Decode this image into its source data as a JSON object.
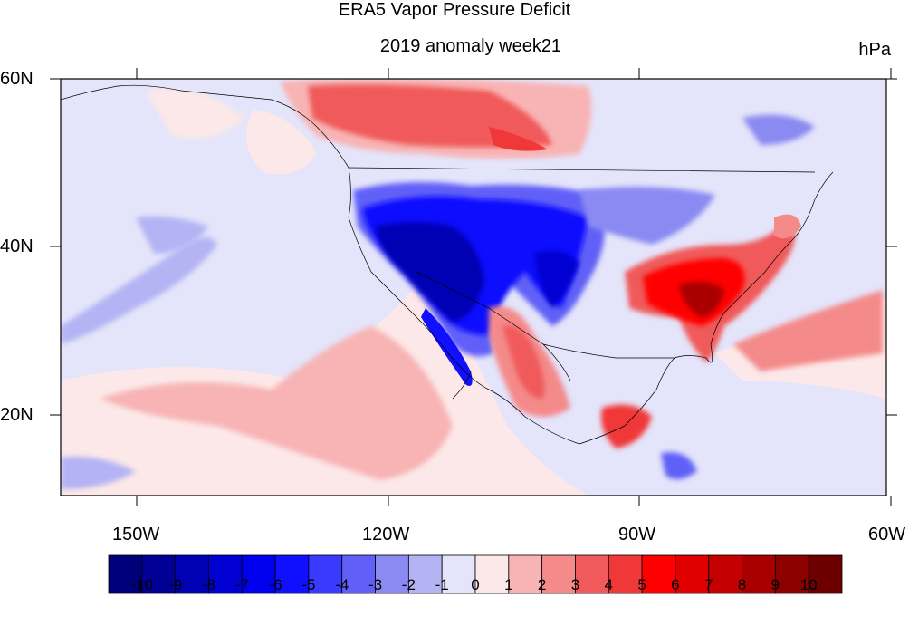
{
  "title": "ERA5 Vapor Pressure Deficit",
  "subtitle": "2019 anomaly week21",
  "units": "hPa",
  "axes": {
    "lat_labels": [
      "60N",
      "40N",
      "20N"
    ],
    "lon_labels": [
      "150W",
      "120W",
      "90W",
      "60W"
    ]
  },
  "colorbar": {
    "labels": [
      "-10",
      "-9",
      "-8",
      "-7",
      "-6",
      "-5",
      "-4",
      "-3",
      "-2",
      "-1",
      "0",
      "1",
      "2",
      "3",
      "4",
      "5",
      "6",
      "7",
      "8",
      "9",
      "10"
    ],
    "colors": [
      "#00007a",
      "#000096",
      "#0000b4",
      "#0000d2",
      "#0000ee",
      "#1010ff",
      "#3a3aff",
      "#6060f8",
      "#8a8af2",
      "#b4b4f4",
      "#e4e4fa",
      "#fce8e8",
      "#f8b4b4",
      "#f48a8a",
      "#f05a5a",
      "#f03838",
      "#ff0000",
      "#e00000",
      "#c40000",
      "#a80000",
      "#8c0000",
      "#6c0000"
    ]
  },
  "map": {
    "extent": {
      "lon_min": -160,
      "lon_max": -60,
      "lat_min": 10,
      "lat_max": 60
    }
  }
}
